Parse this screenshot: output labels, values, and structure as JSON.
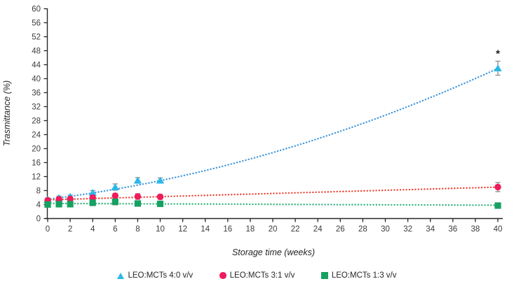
{
  "chart_data": {
    "type": "scatter",
    "title": "",
    "xlabel": "Storage time (weeks)",
    "ylabel": "Trasmittance (%)",
    "xlim": [
      0,
      40
    ],
    "ylim": [
      0,
      60
    ],
    "x_ticks": [
      0,
      2,
      4,
      6,
      8,
      10,
      12,
      14,
      16,
      18,
      20,
      22,
      24,
      26,
      28,
      30,
      32,
      34,
      36,
      38,
      40
    ],
    "y_ticks": [
      0,
      4,
      8,
      12,
      16,
      20,
      24,
      28,
      32,
      36,
      40,
      44,
      48,
      52,
      56,
      60
    ],
    "grid": false,
    "legend_position": "bottom",
    "x": [
      0,
      1,
      2,
      4,
      6,
      8,
      10,
      40
    ],
    "series": [
      {
        "name": "LEO:MCTs 4:0 v/v",
        "marker": "triangle",
        "marker_color": "#29b9e8",
        "line_color": "#3f96dc",
        "values": [
          5.5,
          5.9,
          6.3,
          7.4,
          9.0,
          10.9,
          10.9,
          43.0
        ],
        "errors": [
          0.4,
          0.5,
          0.4,
          0.6,
          0.9,
          0.8,
          0.7,
          2.0
        ],
        "trend": {
          "type": "quadratic",
          "coeffs": [
            5.5,
            0.4,
            0.0134
          ]
        }
      },
      {
        "name": "LEO:MCTs 3:1 v/v",
        "marker": "circle",
        "marker_color": "#ee1c5d",
        "line_color": "#ef4437",
        "values": [
          5.2,
          5.5,
          5.6,
          6.0,
          6.5,
          6.3,
          6.2,
          9.0
        ],
        "errors": [
          0.5,
          0.8,
          0.5,
          0.6,
          0.7,
          0.8,
          0.7,
          1.3
        ],
        "trend": {
          "type": "linear",
          "coeffs": [
            5.35,
            0.091
          ]
        }
      },
      {
        "name": "LEO:MCTs 1:3 v/v",
        "marker": "square",
        "marker_color": "#16a061",
        "line_color": "#2eb47c",
        "values": [
          4.0,
          4.1,
          4.1,
          4.5,
          4.8,
          4.3,
          4.2,
          3.7
        ],
        "errors": [
          0.6,
          0.7,
          0.6,
          0.8,
          0.9,
          0.6,
          0.5,
          0.7
        ],
        "trend": {
          "type": "linear",
          "coeffs": [
            4.32,
            -0.013
          ]
        }
      }
    ],
    "error_bar_color": "#8c8c8c",
    "axis_color": "#262626",
    "annotation": {
      "text": "*",
      "series": "LEO:MCTs 4:0 v/v",
      "x": 40
    }
  },
  "legend": {
    "items": [
      {
        "label": "LEO:MCTs 4:0 v/v"
      },
      {
        "label": "LEO:MCTs 3:1 v/v"
      },
      {
        "label": "LEO:MCTs 1:3 v/v"
      }
    ]
  }
}
